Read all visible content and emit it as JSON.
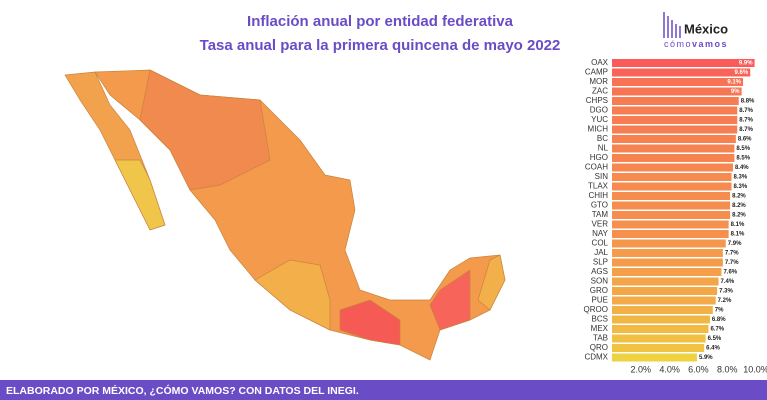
{
  "chart_data": {
    "type": "bar",
    "orientation": "horizontal",
    "title": "Inflación anual por entidad federativa",
    "subtitle": "Tasa anual para la primera quincena de mayo 2022",
    "categories": [
      "OAX",
      "CAMP",
      "MOR",
      "ZAC",
      "CHPS",
      "DGO",
      "YUC",
      "MICH",
      "BC",
      "NL",
      "HGO",
      "COAH",
      "SIN",
      "TLAX",
      "CHIH",
      "GTO",
      "TAM",
      "VER",
      "NAY",
      "COL",
      "JAL",
      "SLP",
      "AGS",
      "SON",
      "GRO",
      "PUE",
      "QROO",
      "BCS",
      "MEX",
      "TAB",
      "QRO",
      "CDMX"
    ],
    "values": [
      9.9,
      9.6,
      9.1,
      9,
      8.8,
      8.7,
      8.7,
      8.7,
      8.6,
      8.5,
      8.5,
      8.4,
      8.3,
      8.3,
      8.2,
      8.2,
      8.2,
      8.1,
      8.1,
      7.9,
      7.7,
      7.7,
      7.6,
      7.4,
      7.3,
      7.2,
      7,
      6.8,
      6.7,
      6.5,
      6.4,
      5.9
    ],
    "value_labels": [
      "9.9%",
      "9.6%",
      "9.1%",
      "9%",
      "8.8%",
      "8.7%",
      "8.7%",
      "8.7%",
      "8.6%",
      "8.5%",
      "8.5%",
      "8.4%",
      "8.3%",
      "8.3%",
      "8.2%",
      "8.2%",
      "8.2%",
      "8.1%",
      "8.1%",
      "7.9%",
      "7.7%",
      "7.7%",
      "7.6%",
      "7.4%",
      "7.3%",
      "7.2%",
      "7%",
      "6.8%",
      "6.7%",
      "6.5%",
      "6.4%",
      "5.9%"
    ],
    "xlim": [
      0,
      10
    ],
    "xticks": [
      {
        "value": 2,
        "label": "2.0%"
      },
      {
        "value": 4,
        "label": "4.0%"
      },
      {
        "value": 6,
        "label": "6.0%"
      },
      {
        "value": 8,
        "label": "8.0%"
      },
      {
        "value": 10,
        "label": "10.0%"
      }
    ],
    "color_scale": [
      "#eed23f",
      "#fb5a5a"
    ]
  },
  "logo": {
    "name": "México",
    "tag_light": "cómo",
    "tag_bold": "vamos"
  },
  "footer": "ELABORADO POR MÉXICO, ¿CÓMO VAMOS? CON DATOS DEL INEGI."
}
